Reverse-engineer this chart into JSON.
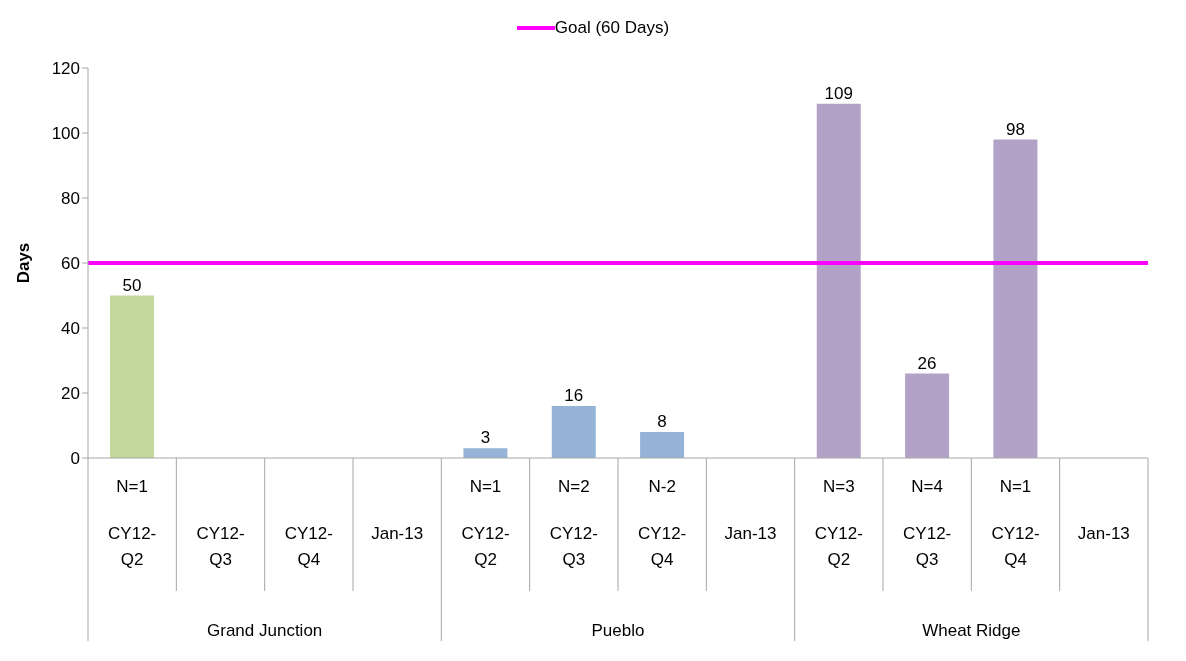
{
  "chart_data": {
    "type": "bar",
    "ylabel": "Days",
    "categories": [
      "N=1 CY12-Q2",
      "CY12-Q3",
      "CY12-Q4",
      "Jan-13",
      "N=1 CY12-Q2",
      "N=2 CY12-Q3",
      "N-2 CY12-Q4",
      "Jan-13",
      "N=3 CY12-Q2",
      "N=4 CY12-Q3",
      "N=1 CY12-Q4",
      "Jan-13"
    ],
    "annotations": [
      "Grand Junction",
      "Pueblo",
      "Wheat Ridge"
    ],
    "values": [
      50,
      null,
      null,
      null,
      3,
      16,
      8,
      null,
      109,
      26,
      98,
      null
    ],
    "colors": [
      "#c3d69b",
      "#c3d69b",
      "#c3d69b",
      "#c3d69b",
      "#95b3d7",
      "#95b3d7",
      "#95b3d7",
      "#95b3d7",
      "#b3a2c7",
      "#b3a2c7",
      "#b3a2c7",
      "#b3a2c7"
    ],
    "ylim": [
      0,
      120
    ],
    "yticks": [
      0,
      20,
      40,
      60,
      80,
      100,
      120
    ],
    "grid": false,
    "data_labels": true,
    "legend": "top",
    "ref_lines": [
      {
        "axis": "y",
        "value": 60,
        "label": "Goal (60 Days)",
        "color": "#ff00ff",
        "line_style": "solid"
      }
    ]
  }
}
